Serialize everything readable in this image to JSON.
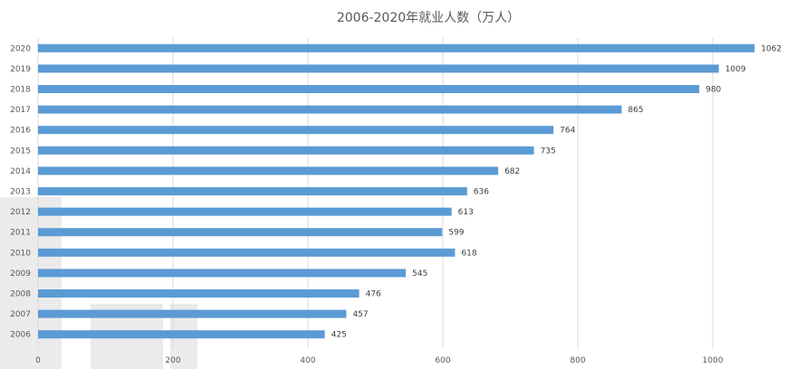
{
  "chart_data": {
    "type": "bar",
    "orientation": "horizontal",
    "title": "2006-2020年就业人数（万人）",
    "categories": [
      "2020",
      "2019",
      "2018",
      "2017",
      "2016",
      "2015",
      "2014",
      "2013",
      "2012",
      "2011",
      "2010",
      "2009",
      "2008",
      "2007",
      "2006"
    ],
    "values": [
      1062,
      1009,
      980,
      865,
      764,
      735,
      682,
      636,
      613,
      599,
      618,
      545,
      476,
      457,
      425
    ],
    "x_ticks": [
      0,
      200,
      400,
      600,
      800,
      1000
    ],
    "xlim": [
      0,
      1080
    ],
    "grid": true,
    "data_labels": true,
    "bar_color": "#5b9bd5",
    "grid_color": "#d9d9d9"
  }
}
